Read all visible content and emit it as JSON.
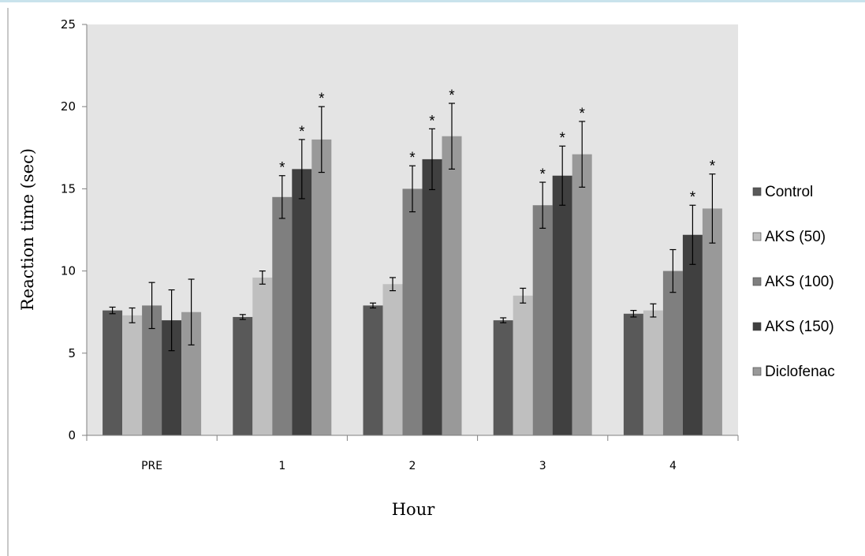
{
  "chart_data": {
    "type": "bar",
    "categories": [
      "PRE",
      "1",
      "2",
      "3",
      "4"
    ],
    "xlabel": "Hour",
    "ylabel": "Reaction time (sec)",
    "ylim": [
      0,
      25
    ],
    "yticks": [
      "0",
      "5",
      "10",
      "15",
      "20",
      "25"
    ],
    "legend_position": "right",
    "significance_marker": "*",
    "series": [
      {
        "name": "Control",
        "color": "#595959",
        "values": [
          7.6,
          7.2,
          7.9,
          7.0,
          7.4
        ],
        "errors": [
          0.2,
          0.15,
          0.15,
          0.15,
          0.2
        ],
        "significant": [
          false,
          false,
          false,
          false,
          false
        ]
      },
      {
        "name": "AKS (50)",
        "color": "#bfbfbf",
        "values": [
          7.3,
          9.6,
          9.2,
          8.5,
          7.6
        ],
        "errors": [
          0.45,
          0.4,
          0.4,
          0.45,
          0.4
        ],
        "significant": [
          false,
          false,
          false,
          false,
          false
        ]
      },
      {
        "name": "AKS (100)",
        "color": "#7f7f7f",
        "values": [
          7.9,
          14.5,
          15.0,
          14.0,
          10.0
        ],
        "errors": [
          1.4,
          1.3,
          1.4,
          1.4,
          1.3
        ],
        "significant": [
          false,
          true,
          true,
          true,
          false
        ]
      },
      {
        "name": "AKS (150)",
        "color": "#404040",
        "values": [
          7.0,
          16.2,
          16.8,
          15.8,
          12.2
        ],
        "errors": [
          1.85,
          1.8,
          1.85,
          1.8,
          1.8
        ],
        "significant": [
          false,
          true,
          true,
          true,
          true
        ]
      },
      {
        "name": "Diclofenac",
        "color": "#999999",
        "values": [
          7.5,
          18.0,
          18.2,
          17.1,
          13.8
        ],
        "errors": [
          2.0,
          2.0,
          2.0,
          2.0,
          2.1
        ],
        "significant": [
          false,
          true,
          true,
          true,
          true
        ]
      }
    ]
  }
}
